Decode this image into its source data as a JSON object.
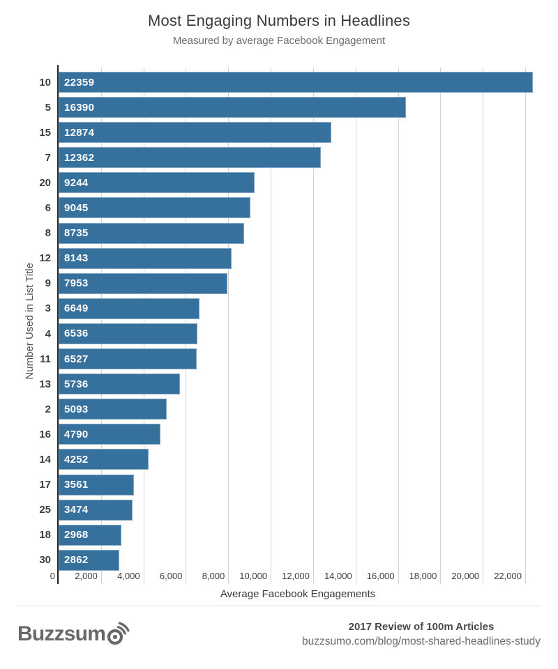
{
  "chart_data": {
    "type": "bar",
    "orientation": "horizontal",
    "title": "Most Engaging Numbers in Headlines",
    "subtitle": "Measured by average Facebook Engagement",
    "xlabel": "Average Facebook Engagements",
    "ylabel": "Number Used in List Title",
    "categories": [
      "10",
      "5",
      "15",
      "7",
      "20",
      "6",
      "8",
      "12",
      "9",
      "3",
      "4",
      "11",
      "13",
      "2",
      "16",
      "14",
      "17",
      "25",
      "18",
      "30"
    ],
    "values": [
      22359,
      16390,
      12874,
      12362,
      9244,
      9045,
      8735,
      8143,
      7953,
      6649,
      6536,
      6527,
      5736,
      5093,
      4790,
      4252,
      3561,
      3474,
      2968,
      2862
    ],
    "value_label_position": "inside-start",
    "xlim": [
      0,
      22560
    ],
    "xticks": [
      {
        "value": 0,
        "label": "0"
      },
      {
        "value": 2000,
        "label": "2,000"
      },
      {
        "value": 4000,
        "label": "4,000"
      },
      {
        "value": 6000,
        "label": "6,000"
      },
      {
        "value": 8000,
        "label": "8,000"
      },
      {
        "value": 10000,
        "label": "10,000"
      },
      {
        "value": 12000,
        "label": "12,000"
      },
      {
        "value": 14000,
        "label": "14,000"
      },
      {
        "value": 16000,
        "label": "16,000"
      },
      {
        "value": 18000,
        "label": "18,000"
      },
      {
        "value": 20000,
        "label": "20,000"
      },
      {
        "value": 22000,
        "label": "22,000"
      }
    ],
    "grid": true,
    "legend": "none",
    "bar_color": "#36719E",
    "axis_color": "#282828",
    "gridline_color": "#d2d2d2"
  },
  "footer": {
    "logo_text": "Buzzsumo",
    "logo_prefix": "Buzzsum",
    "note_title": "2017 Review of 100m Articles",
    "note_url": "buzzsumo.com/blog/most-shared-headlines-study"
  }
}
